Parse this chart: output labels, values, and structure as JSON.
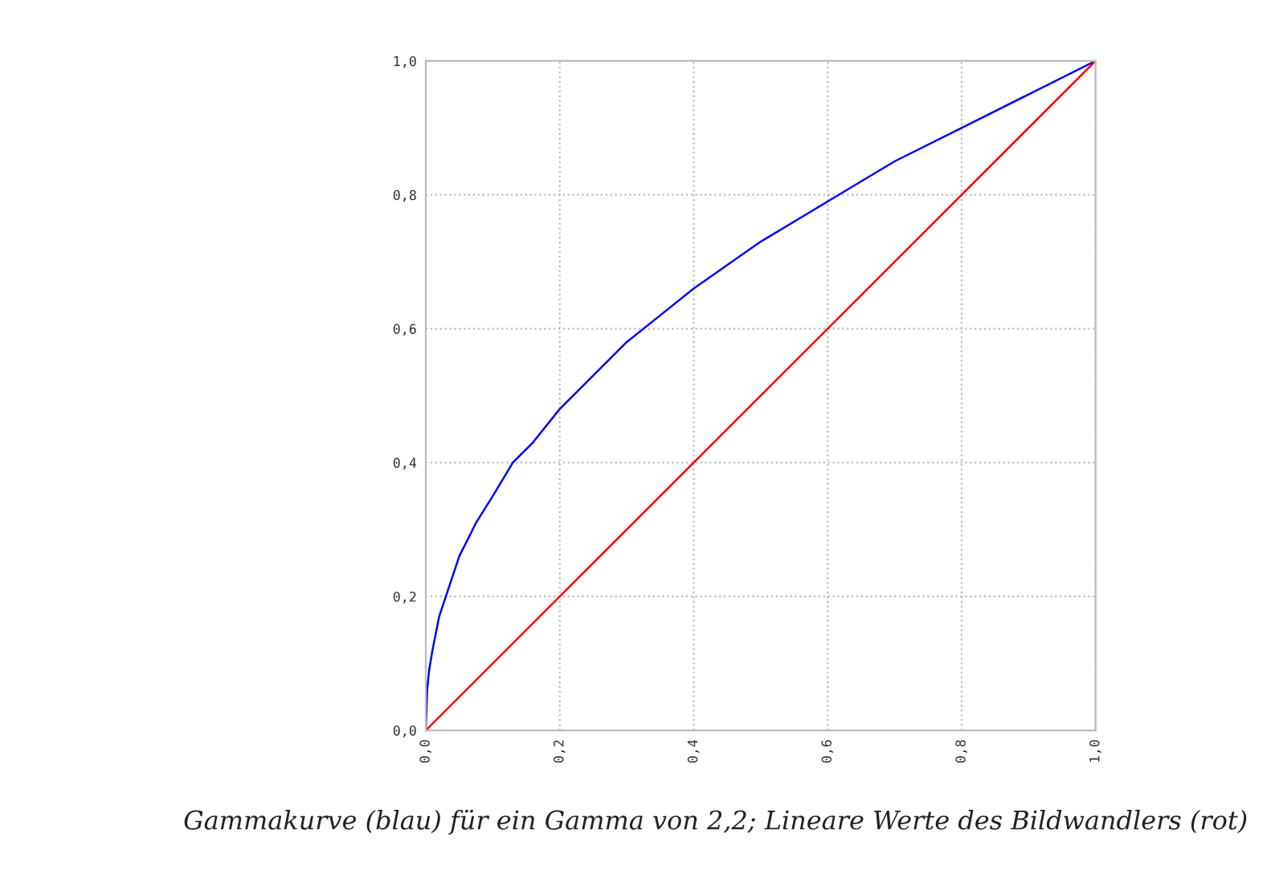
{
  "chart_data": {
    "type": "line",
    "annotations": [
      "Gammakurve (blau) für ein Gamma von 2,2; Lineare Werte des Bildwandlers (rot)"
    ],
    "series": [
      {
        "color": "#0000ff",
        "x": [
          0,
          0.002,
          0.005,
          0.01,
          0.02,
          0.03,
          0.05,
          0.075,
          0.1,
          0.13,
          0.16,
          0.2,
          0.25,
          0.3,
          0.35,
          0.4,
          0.5,
          0.6,
          0.7,
          0.8,
          0.9,
          1.0
        ],
        "values": [
          0,
          0.06,
          0.09,
          0.12,
          0.17,
          0.2,
          0.26,
          0.31,
          0.35,
          0.4,
          0.43,
          0.48,
          0.53,
          0.58,
          0.62,
          0.66,
          0.73,
          0.79,
          0.85,
          0.9,
          0.95,
          1.0
        ]
      },
      {
        "color": "#ff0000",
        "x": [
          0,
          1.0
        ],
        "values": [
          0,
          1.0
        ]
      }
    ],
    "xlim": [
      0,
      1.0
    ],
    "ylim": [
      0,
      1.0
    ],
    "xticks": [
      {
        "value": 0,
        "label": "0,0"
      },
      {
        "value": 0.2,
        "label": "0,2"
      },
      {
        "value": 0.4,
        "label": "0,4"
      },
      {
        "value": 0.6,
        "label": "0,6"
      },
      {
        "value": 0.8,
        "label": "0,8"
      },
      {
        "value": 1.0,
        "label": "1,0"
      }
    ],
    "yticks": [
      {
        "value": 0,
        "label": "0,0"
      },
      {
        "value": 0.2,
        "label": "0,2"
      },
      {
        "value": 0.4,
        "label": "0,4"
      },
      {
        "value": 0.6,
        "label": "0,6"
      },
      {
        "value": 0.8,
        "label": "0,8"
      },
      {
        "value": 1.0,
        "label": "1,0"
      }
    ],
    "grid": true,
    "line_style": "solid"
  }
}
